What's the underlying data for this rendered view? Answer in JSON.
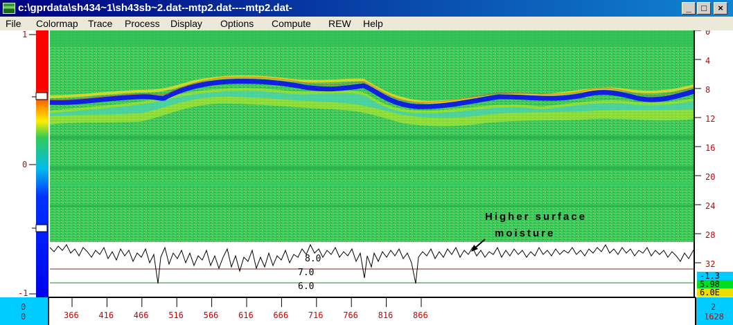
{
  "window": {
    "title": "c:\\gprdata\\sh434~1\\sh43sb~2.dat--mtp2.dat----mtp2.dat-",
    "buttons": {
      "minimize": "_",
      "maximize": "□",
      "close": "×"
    }
  },
  "menu": [
    "File",
    "Colormap",
    "Trace",
    "Process",
    "Display",
    "Options",
    "Compute",
    "REW",
    "Help"
  ],
  "left_axis": {
    "labels": [
      "1",
      "0",
      "-1"
    ]
  },
  "right_axis": {
    "labels": [
      "0",
      "4",
      "8",
      "12",
      "16",
      "20",
      "24",
      "28",
      "32"
    ]
  },
  "right_readouts": [
    "-1.3",
    "5.98",
    "6.0E"
  ],
  "bottom_axis": {
    "corner_left": "0\n0",
    "ticks": [
      "366",
      "416",
      "466",
      "516",
      "566",
      "616",
      "666",
      "716",
      "766",
      "816",
      "866"
    ],
    "corner_right": "2\n1628"
  },
  "trace_levels": [
    "8.0",
    "7.0",
    "6.0"
  ],
  "annotation": [
    "Higher surface",
    "moisture"
  ],
  "colors": {
    "left_bar_top": "#ff0000",
    "left_bar_bottom": "#0000ff",
    "cyan_panel": "#00ccff",
    "radar_green": "#33cc55",
    "reflector_blue": "#1020dd",
    "axis_tick_red": "#cc0000"
  }
}
